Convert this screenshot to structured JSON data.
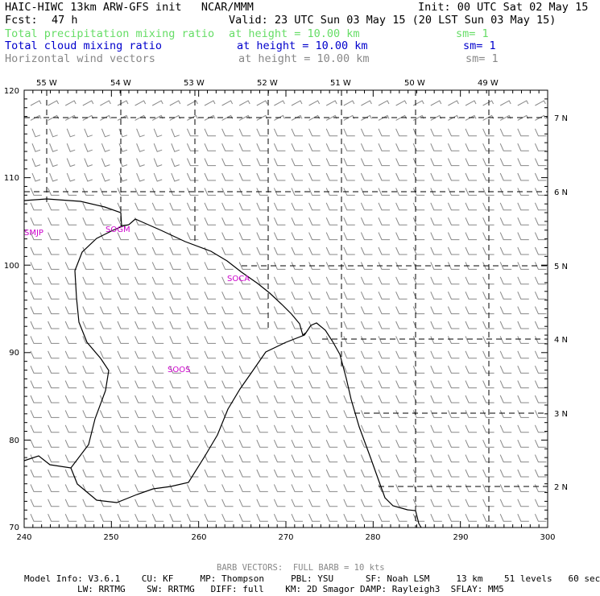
{
  "header": {
    "title": "HAIC-HIWC 13km ARW-GFS init   NCAR/MMM",
    "init": "Init: 00 UTC Sat 02 May 15",
    "fcst_label": "Fcst:",
    "fcst_value": "47 h",
    "valid": "Valid: 23 UTC Sun 03 May 15 (20 LST Sun 03 May 15)",
    "fields": [
      {
        "name": "Total precipitation mixing ratio",
        "height": "at height = 10.00 km",
        "sm": "sm= 1",
        "color": "#66dd66"
      },
      {
        "name": "Total cloud mixing ratio",
        "height": "at height = 10.00 km",
        "sm": "sm= 1",
        "color": "#0000cc"
      },
      {
        "name": "Horizontal wind vectors",
        "height": "at height = 10.00 km",
        "sm": "sm= 1",
        "color": "#888888"
      }
    ]
  },
  "map": {
    "lon_labels": [
      "55 W",
      "54 W",
      "53 W",
      "52 W",
      "51 W",
      "50 W",
      "49 W"
    ],
    "lat_labels": [
      "7 N",
      "6 N",
      "5 N",
      "4 N",
      "3 N",
      "2 N"
    ],
    "x_ticks": [
      "240",
      "250",
      "260",
      "270",
      "280",
      "290",
      "300"
    ],
    "y_ticks": [
      "120",
      "110",
      "100",
      "90",
      "80",
      "70"
    ],
    "stations": [
      "SMJP",
      "SOGM",
      "SOCA",
      "SOOS"
    ],
    "station_color": "#cc00cc",
    "barb_color": "#888888"
  },
  "footer": {
    "barb_note": "BARB VECTORS:  FULL BARB = 10 kts",
    "line1": "Model Info: V3.6.1    CU: KF     MP: Thompson     PBL: YSU      SF: Noah LSM     13 km    51 levels   60 sec",
    "line2": "LW: RRTMG    SW: RRTMG   DIFF: full    KM: 2D Smagor DAMP: Rayleigh3  SFLAY: MM5"
  }
}
